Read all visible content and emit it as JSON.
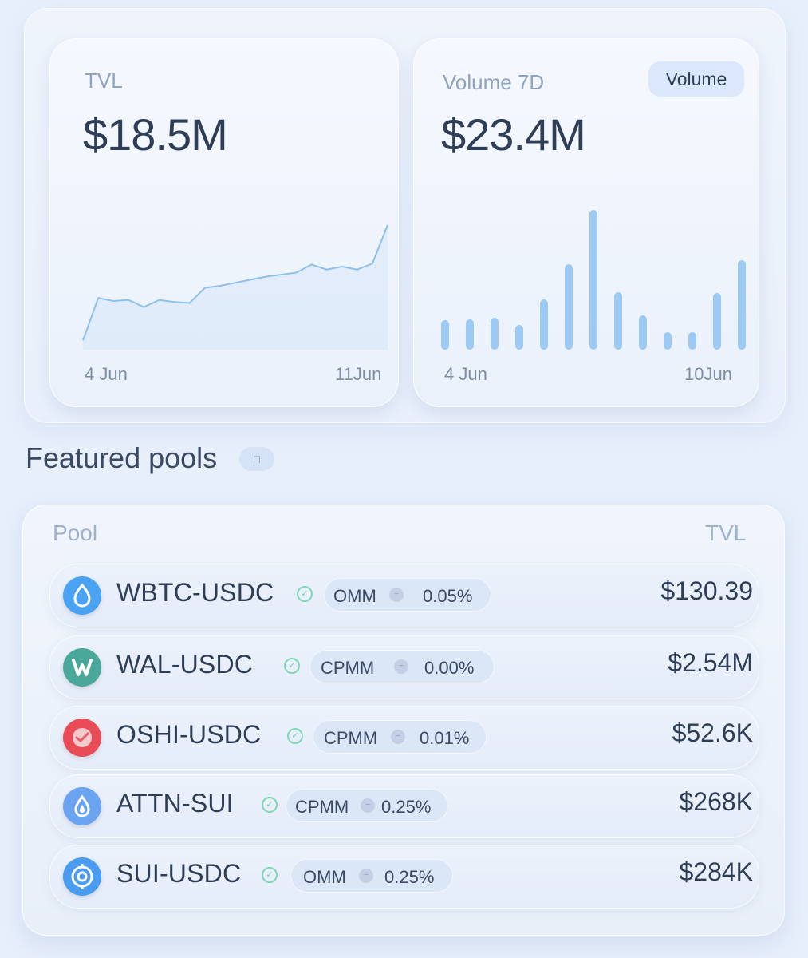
{
  "tvl_card": {
    "label": "TVL",
    "value": "$18.5M",
    "axis_start": "4 Jun",
    "axis_end": "11Jun"
  },
  "volume_card": {
    "label": "Volume 7D",
    "value": "$23.4M",
    "badge": "Volume",
    "axis_start": "4 Jun",
    "axis_end": "10Jun"
  },
  "chart_data": [
    {
      "type": "area",
      "title": "TVL",
      "x_start": "4 Jun",
      "x_end": "11Jun",
      "values": [
        0.6,
        4.8,
        4.5,
        4.6,
        3.9,
        4.6,
        4.4,
        4.3,
        5.8,
        6.0,
        6.3,
        6.6,
        6.9,
        7.1,
        7.3,
        8.1,
        7.6,
        7.9,
        7.6,
        8.2,
        12.0
      ],
      "color": "#8ec0ec",
      "grid": false
    },
    {
      "type": "bar",
      "title": "Volume 7D",
      "x_start": "4 Jun",
      "x_end": "10Jun",
      "values": [
        37,
        38,
        40,
        31,
        63,
        107,
        175,
        72,
        43,
        22,
        22,
        71,
        112
      ],
      "color": "#9ccaf3",
      "grid": false
    }
  ],
  "featured": {
    "title": "Featured pools",
    "chip": "⊓"
  },
  "pools": {
    "header_pool": "Pool",
    "header_tvl": "TVL",
    "rows": [
      {
        "name": "WBTC-USDC",
        "type": "OMM",
        "fee": "0.05%",
        "tvl": "$130.39",
        "icon": "sui-drop-icon",
        "icon_color": "#4aa3f2"
      },
      {
        "name": "WAL-USDC",
        "type": "CPMM",
        "fee": "0.00%",
        "tvl": "$2.54M",
        "icon": "walrus-w-icon",
        "icon_color": "#49a89a"
      },
      {
        "name": "OSHI-USDC",
        "type": "CPMM",
        "fee": "0.01%",
        "tvl": "$52.6K",
        "icon": "oshi-icon",
        "icon_color": "#ea4c57"
      },
      {
        "name": "ATTN-SUI",
        "type": "CPMM",
        "fee": "0.25%",
        "tvl": "$268K",
        "icon": "attn-drop-icon",
        "icon_color": "#6aa4f0"
      },
      {
        "name": "SUI-USDC",
        "type": "OMM",
        "fee": "0.25%",
        "tvl": "$284K",
        "icon": "sui-target-icon",
        "icon_color": "#4a9cf1"
      }
    ]
  },
  "colors": {
    "background": "#e7effb",
    "chart_line": "#8ec0ec",
    "chart_bar": "#9ccaf3",
    "verify_green": "#7fd7b8"
  }
}
